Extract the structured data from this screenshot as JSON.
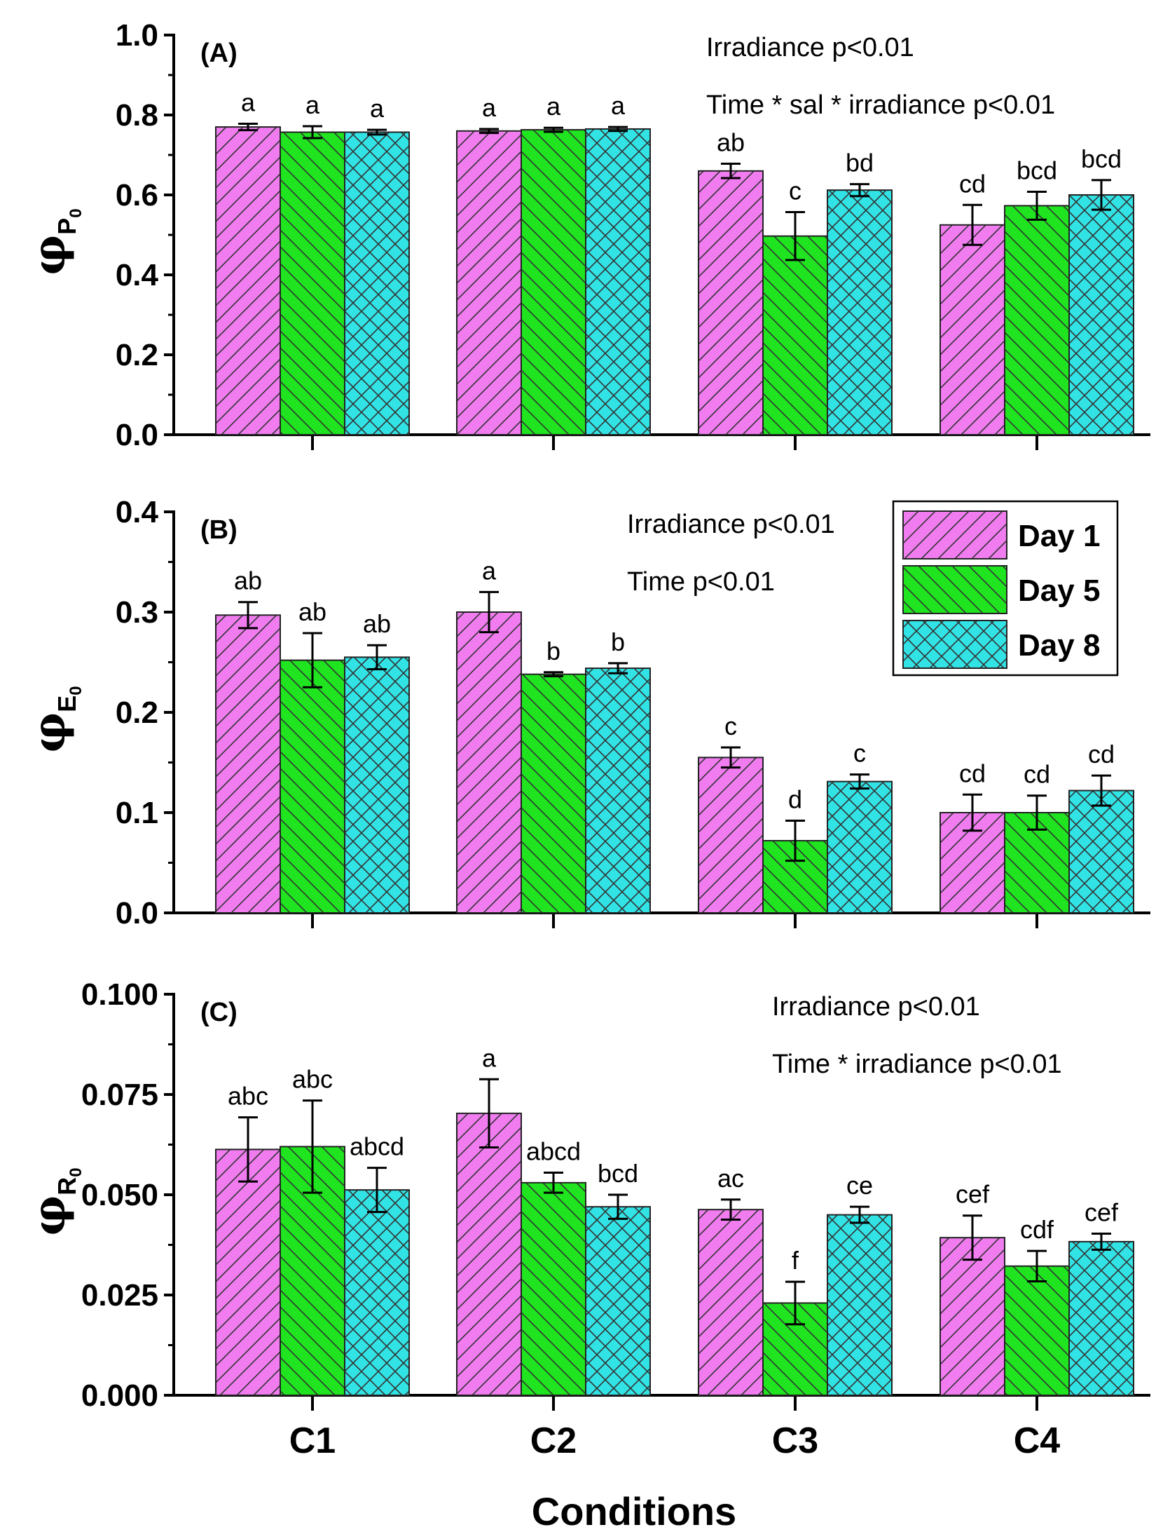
{
  "chart_data": {
    "type": "bar",
    "categories": [
      "C1",
      "C2",
      "C3",
      "C4"
    ],
    "xlabel": "Conditions",
    "legend": {
      "placement": "right, inside panel B",
      "entries": [
        "Day 1",
        "Day 5",
        "Day 8"
      ]
    },
    "colors": {
      "Day 1": "#f07cf0",
      "Day 5": "#1fe41f",
      "Day 8": "#32e3e6"
    },
    "panels": [
      {
        "label": "(A)",
        "ylabel_main": "φ",
        "ylabel_sub": "P",
        "ylabel_subsub": "0",
        "ylim": [
          0,
          1.0
        ],
        "yticks": [
          0.0,
          0.2,
          0.4,
          0.6,
          0.8,
          1.0
        ],
        "ytick_labels": [
          "0.0",
          "0.2",
          "0.4",
          "0.6",
          "0.8",
          "1.0"
        ],
        "annotations": [
          "Irradiance p<0.01",
          "Time * sal * irradiance p<0.01"
        ],
        "series": [
          {
            "name": "Day 1",
            "values": [
              0.77,
              0.76,
              0.66,
              0.525
            ],
            "errors": [
              0.008,
              0.005,
              0.018,
              0.05
            ],
            "letters": [
              "a",
              "a",
              "ab",
              "cd"
            ]
          },
          {
            "name": "Day 5",
            "values": [
              0.757,
              0.763,
              0.497,
              0.573
            ],
            "errors": [
              0.015,
              0.005,
              0.06,
              0.035
            ],
            "letters": [
              "a",
              "a",
              "c",
              "bcd"
            ]
          },
          {
            "name": "Day 8",
            "values": [
              0.757,
              0.765,
              0.612,
              0.6
            ],
            "errors": [
              0.006,
              0.005,
              0.015,
              0.037
            ],
            "letters": [
              "a",
              "a",
              "bd",
              "bcd"
            ]
          }
        ]
      },
      {
        "label": "(B)",
        "ylabel_main": "φ",
        "ylabel_sub": "E",
        "ylabel_subsub": "0",
        "ylim": [
          0,
          0.4
        ],
        "yticks": [
          0.0,
          0.1,
          0.2,
          0.3,
          0.4
        ],
        "ytick_labels": [
          "0.0",
          "0.1",
          "0.2",
          "0.3",
          "0.4"
        ],
        "annotations": [
          "Irradiance p<0.01",
          "Time p<0.01"
        ],
        "series": [
          {
            "name": "Day 1",
            "values": [
              0.297,
              0.3,
              0.155,
              0.1
            ],
            "errors": [
              0.013,
              0.02,
              0.01,
              0.018
            ],
            "letters": [
              "ab",
              "a",
              "c",
              "cd"
            ]
          },
          {
            "name": "Day 5",
            "values": [
              0.252,
              0.238,
              0.072,
              0.1
            ],
            "errors": [
              0.027,
              0.002,
              0.02,
              0.017
            ],
            "letters": [
              "ab",
              "b",
              "d",
              "cd"
            ]
          },
          {
            "name": "Day 8",
            "values": [
              0.255,
              0.244,
              0.131,
              0.122
            ],
            "errors": [
              0.012,
              0.005,
              0.007,
              0.015
            ],
            "letters": [
              "ab",
              "b",
              "c",
              "cd"
            ]
          }
        ]
      },
      {
        "label": "(C)",
        "ylabel_main": "φ",
        "ylabel_sub": "R",
        "ylabel_subsub": "0",
        "ylim": [
          0,
          0.1
        ],
        "yticks": [
          0.0,
          0.025,
          0.05,
          0.075,
          0.1
        ],
        "ytick_labels": [
          "0.000",
          "0.025",
          "0.050",
          "0.075",
          "0.100"
        ],
        "annotations": [
          "Irradiance p<0.01",
          "Time * irradiance p<0.01"
        ],
        "series": [
          {
            "name": "Day 1",
            "values": [
              0.0613,
              0.0703,
              0.0463,
              0.0393
            ],
            "errors": [
              0.008,
              0.0085,
              0.0025,
              0.0055
            ],
            "letters": [
              "abc",
              "a",
              "ac",
              "cef"
            ]
          },
          {
            "name": "Day 5",
            "values": [
              0.062,
              0.053,
              0.023,
              0.0322
            ],
            "errors": [
              0.0115,
              0.0025,
              0.0053,
              0.0038
            ],
            "letters": [
              "abc",
              "abcd",
              "f",
              "cdf"
            ]
          },
          {
            "name": "Day 8",
            "values": [
              0.0512,
              0.047,
              0.045,
              0.0383
            ],
            "errors": [
              0.0055,
              0.003,
              0.002,
              0.002
            ],
            "letters": [
              "abcd",
              "bcd",
              "ce",
              "cef"
            ]
          }
        ]
      }
    ]
  }
}
